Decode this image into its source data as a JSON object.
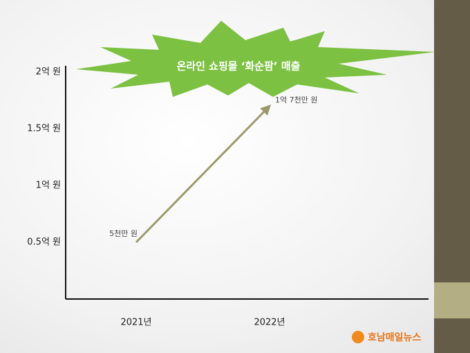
{
  "chart_data": {
    "type": "line",
    "title": "온라인 쇼핑몰 ‘화순팜’ 매출",
    "categories": [
      "2021년",
      "2022년"
    ],
    "values": [
      0.5,
      1.7
    ],
    "value_labels": [
      "5천만 원",
      "1억 7천만 원"
    ],
    "color": "#9a9a6c",
    "ylim": [
      0,
      2
    ],
    "yticks": [
      {
        "value": 0.5,
        "label": "0.5억 원"
      },
      {
        "value": 1,
        "label": "1억 원"
      },
      {
        "value": 1.5,
        "label": "1.5억 원"
      },
      {
        "value": 2,
        "label": "2억 원"
      }
    ],
    "source": "호남매일뉴스"
  }
}
